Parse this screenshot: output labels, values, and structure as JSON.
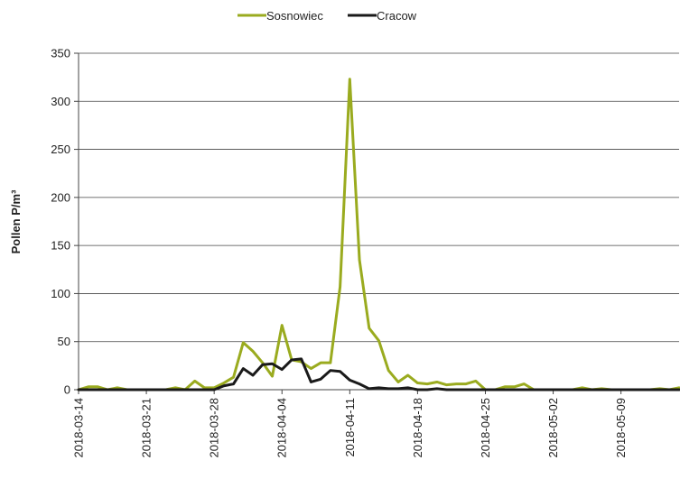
{
  "chart_data": {
    "type": "line",
    "title": "",
    "xlabel": "",
    "ylabel": "Pollen P/m³",
    "ylim": [
      0,
      350
    ],
    "yticks": [
      0,
      50,
      100,
      150,
      200,
      250,
      300,
      350
    ],
    "xrange": [
      "2018-03-14",
      "2018-05-15"
    ],
    "xticks": [
      "2018-03-14",
      "2018-03-21",
      "2018-03-28",
      "2018-04-04",
      "2018-04-11",
      "2018-04-18",
      "2018-04-25",
      "2018-05-02",
      "2018-05-09"
    ],
    "grid": true,
    "legend_position": "top-center",
    "series": [
      {
        "name": "Sosnowiec",
        "color": "#9aab1f",
        "x": [
          "2018-03-14",
          "2018-03-15",
          "2018-03-16",
          "2018-03-17",
          "2018-03-18",
          "2018-03-19",
          "2018-03-20",
          "2018-03-21",
          "2018-03-22",
          "2018-03-23",
          "2018-03-24",
          "2018-03-25",
          "2018-03-26",
          "2018-03-27",
          "2018-03-28",
          "2018-03-29",
          "2018-03-30",
          "2018-03-31",
          "2018-04-01",
          "2018-04-02",
          "2018-04-03",
          "2018-04-04",
          "2018-04-05",
          "2018-04-06",
          "2018-04-07",
          "2018-04-08",
          "2018-04-09",
          "2018-04-10",
          "2018-04-11",
          "2018-04-12",
          "2018-04-13",
          "2018-04-14",
          "2018-04-15",
          "2018-04-16",
          "2018-04-17",
          "2018-04-18",
          "2018-04-19",
          "2018-04-20",
          "2018-04-21",
          "2018-04-22",
          "2018-04-23",
          "2018-04-24",
          "2018-04-25",
          "2018-04-26",
          "2018-04-27",
          "2018-04-28",
          "2018-04-29",
          "2018-04-30",
          "2018-05-01",
          "2018-05-02",
          "2018-05-03",
          "2018-05-04",
          "2018-05-05",
          "2018-05-06",
          "2018-05-07",
          "2018-05-08",
          "2018-05-09",
          "2018-05-10",
          "2018-05-11",
          "2018-05-12",
          "2018-05-13",
          "2018-05-14",
          "2018-05-15"
        ],
        "values": [
          0,
          3,
          3,
          0,
          2,
          0,
          0,
          0,
          0,
          0,
          2,
          0,
          9,
          2,
          2,
          7,
          13,
          49,
          40,
          28,
          14,
          67,
          31,
          29,
          22,
          28,
          28,
          107,
          323,
          135,
          64,
          51,
          20,
          8,
          15,
          7,
          6,
          8,
          5,
          6,
          6,
          9,
          0,
          0,
          3,
          3,
          6,
          0,
          0,
          0,
          0,
          0,
          2,
          0,
          1,
          0,
          0,
          0,
          0,
          0,
          1,
          0,
          2
        ]
      },
      {
        "name": "Cracow",
        "color": "#1a1a1a",
        "x": [
          "2018-03-14",
          "2018-03-15",
          "2018-03-16",
          "2018-03-17",
          "2018-03-18",
          "2018-03-19",
          "2018-03-20",
          "2018-03-21",
          "2018-03-22",
          "2018-03-23",
          "2018-03-24",
          "2018-03-25",
          "2018-03-26",
          "2018-03-27",
          "2018-03-28",
          "2018-03-29",
          "2018-03-30",
          "2018-03-31",
          "2018-04-01",
          "2018-04-02",
          "2018-04-03",
          "2018-04-04",
          "2018-04-05",
          "2018-04-06",
          "2018-04-07",
          "2018-04-08",
          "2018-04-09",
          "2018-04-10",
          "2018-04-11",
          "2018-04-12",
          "2018-04-13",
          "2018-04-14",
          "2018-04-15",
          "2018-04-16",
          "2018-04-17",
          "2018-04-18",
          "2018-04-19",
          "2018-04-20",
          "2018-04-21",
          "2018-04-22",
          "2018-04-23",
          "2018-04-24",
          "2018-04-25",
          "2018-04-26",
          "2018-04-27",
          "2018-04-28",
          "2018-04-29",
          "2018-04-30",
          "2018-05-01",
          "2018-05-02",
          "2018-05-03",
          "2018-05-04",
          "2018-05-05",
          "2018-05-06",
          "2018-05-07",
          "2018-05-08",
          "2018-05-09",
          "2018-05-10",
          "2018-05-11",
          "2018-05-12",
          "2018-05-13",
          "2018-05-14",
          "2018-05-15"
        ],
        "values": [
          0,
          0,
          0,
          0,
          0,
          0,
          0,
          0,
          0,
          0,
          0,
          0,
          0,
          0,
          0,
          4,
          6,
          22,
          15,
          26,
          27,
          21,
          31,
          32,
          8,
          11,
          20,
          19,
          10,
          6,
          1,
          2,
          1,
          1,
          2,
          0,
          0,
          1,
          0,
          0,
          0,
          0,
          0,
          0,
          0,
          0,
          0,
          0,
          0,
          0,
          0,
          0,
          0,
          0,
          0,
          0,
          0,
          0,
          0,
          0,
          0,
          0,
          0
        ]
      }
    ]
  }
}
